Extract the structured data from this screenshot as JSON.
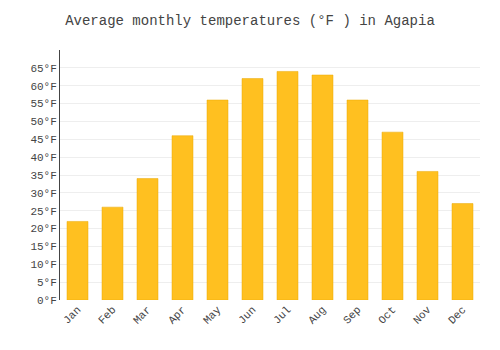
{
  "chart_data": {
    "type": "bar",
    "title": "Average monthly temperatures (°F ) in Agapia",
    "categories": [
      "Jan",
      "Feb",
      "Mar",
      "Apr",
      "May",
      "Jun",
      "Jul",
      "Aug",
      "Sep",
      "Oct",
      "Nov",
      "Dec"
    ],
    "values": [
      22,
      26,
      34,
      46,
      56,
      62,
      64,
      63,
      56,
      47,
      36,
      27
    ],
    "color": "#FFC020",
    "ylim": [
      0,
      70
    ],
    "yticks": [
      {
        "value": 0,
        "label": "0°F"
      },
      {
        "value": 5,
        "label": "5°F"
      },
      {
        "value": 10,
        "label": "10°F"
      },
      {
        "value": 15,
        "label": "15°F"
      },
      {
        "value": 20,
        "label": "20°F"
      },
      {
        "value": 25,
        "label": "25°F"
      },
      {
        "value": 30,
        "label": "30°F"
      },
      {
        "value": 35,
        "label": "35°F"
      },
      {
        "value": 40,
        "label": "40°F"
      },
      {
        "value": 45,
        "label": "45°F"
      },
      {
        "value": 50,
        "label": "50°F"
      },
      {
        "value": 55,
        "label": "55°F"
      },
      {
        "value": 60,
        "label": "60°F"
      },
      {
        "value": 65,
        "label": "65°F"
      }
    ],
    "grid": true
  }
}
